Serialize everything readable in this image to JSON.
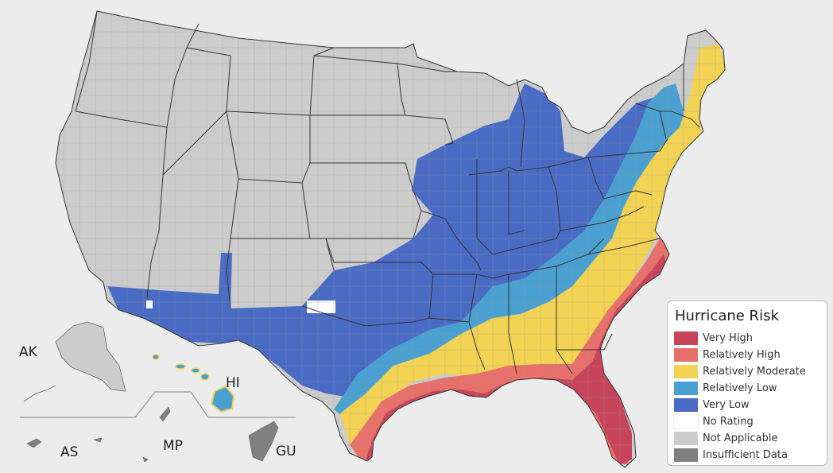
{
  "legend": {
    "title": "Hurricane Risk",
    "items": [
      {
        "key": "very-high",
        "label": "Very High",
        "color": "#c8445b"
      },
      {
        "key": "relatively-high",
        "label": "Relatively High",
        "color": "#e8706a"
      },
      {
        "key": "relatively-moderate",
        "label": "Relatively Moderate",
        "color": "#f2d353"
      },
      {
        "key": "relatively-low",
        "label": "Relatively Low",
        "color": "#4aa0d0"
      },
      {
        "key": "very-low",
        "label": "Very Low",
        "color": "#4a6bc4"
      },
      {
        "key": "no-rating",
        "label": "No Rating",
        "color": "#ffffff"
      },
      {
        "key": "not-applicable",
        "label": "Not Applicable",
        "color": "#cccccc"
      },
      {
        "key": "insufficient-data",
        "label": "Insufficient Data",
        "color": "#808080"
      }
    ]
  },
  "territories": {
    "ak": "AK",
    "hi": "HI",
    "as": "AS",
    "mp": "MP",
    "gu": "GU"
  },
  "colors": {
    "background": "#ececec",
    "state_border": "#333333",
    "county_border": "#9a9a9a"
  }
}
